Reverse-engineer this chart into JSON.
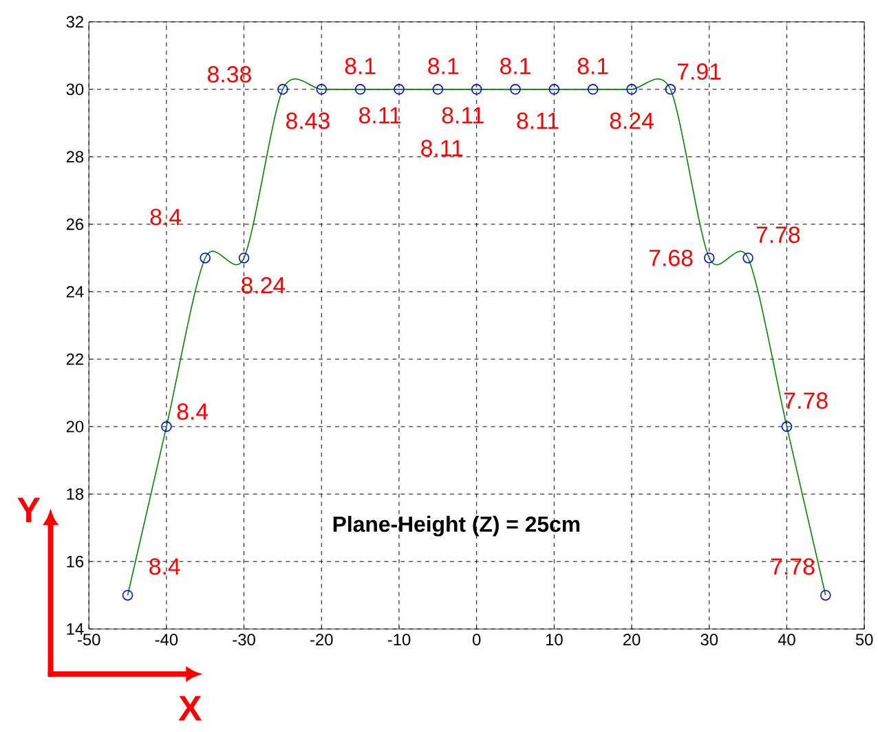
{
  "chart_data": {
    "type": "scatter",
    "x": [
      -45,
      -40,
      -35,
      -30,
      -25,
      -20,
      -15,
      -10,
      -5,
      0,
      5,
      10,
      15,
      20,
      25,
      30,
      35,
      40,
      45
    ],
    "series": [
      {
        "type": "line",
        "color": "#008000",
        "marker": "none",
        "values": [
          15,
          20,
          25,
          25,
          30,
          30,
          30,
          30,
          30,
          30,
          30,
          30,
          30,
          30,
          30,
          25,
          25,
          20,
          15
        ]
      },
      {
        "color": "#0000ff",
        "marker": "circle",
        "values": [
          15,
          20,
          25,
          25,
          30,
          30,
          30,
          30,
          30,
          30,
          30,
          30,
          30,
          30,
          30,
          25,
          25,
          20,
          15
        ]
      }
    ],
    "xlabel": "X",
    "ylabel": "Y",
    "xlim": [
      -50,
      50
    ],
    "xticks": [
      -50,
      -40,
      -30,
      -20,
      -10,
      0,
      10,
      20,
      30,
      40,
      50
    ],
    "ylim": [
      14,
      32
    ],
    "yticks": [
      14,
      16,
      18,
      20,
      22,
      24,
      26,
      28,
      30,
      32
    ],
    "grid": true,
    "annotations": [
      {
        "text": "8.4",
        "x": -45,
        "y": 15
      },
      {
        "text": "8.4",
        "x": -40,
        "y": 20
      },
      {
        "text": "8.4",
        "x": -35,
        "y": 25
      },
      {
        "text": "8.24",
        "x": -30,
        "y": 25
      },
      {
        "text": "8.38",
        "x": -25,
        "y": 30
      },
      {
        "text": "8.43",
        "x": -20,
        "y": 30
      },
      {
        "text": "8.1",
        "x": -15,
        "y": 30
      },
      {
        "text": "8.11",
        "x": -10,
        "y": 30
      },
      {
        "text": "8.1",
        "x": -5,
        "y": 30
      },
      {
        "text": "8.11",
        "x": 0,
        "y": 30
      },
      {
        "text": "8.1",
        "x": 5,
        "y": 30
      },
      {
        "text": "8.11",
        "x": 10,
        "y": 30
      },
      {
        "text": "8.1",
        "x": 15,
        "y": 30
      },
      {
        "text": "8.24",
        "x": 20,
        "y": 30
      },
      {
        "text": "7.91",
        "x": 25,
        "y": 30
      },
      {
        "text": "7.68",
        "x": 30,
        "y": 25
      },
      {
        "text": "7.78",
        "x": 35,
        "y": 25
      },
      {
        "text": "7.78",
        "x": 40,
        "y": 20
      },
      {
        "text": "7.78",
        "x": 45,
        "y": 15
      },
      {
        "text": "8.11",
        "x": -5,
        "y": 30
      },
      "Plane-Height (Z) = 25cm"
    ]
  }
}
